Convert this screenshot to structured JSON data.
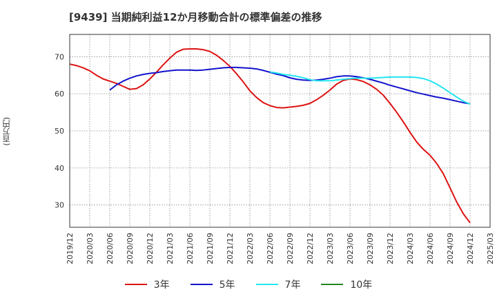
{
  "title": "[9439]  当期純利益12か月移動合計の標準偏差の推移",
  "y_unit_label": "(百万円)",
  "chart_data": {
    "type": "line",
    "title": "[9439]  当期純利益12か月移動合計の標準偏差の推移",
    "ylabel": "(百万円)",
    "xlabel": "",
    "ylim": [
      24,
      76
    ],
    "yticks": [
      30,
      40,
      50,
      60,
      70
    ],
    "xticks": [
      "2019/12",
      "2020/03",
      "2020/06",
      "2020/09",
      "2020/12",
      "2021/03",
      "2021/06",
      "2021/09",
      "2021/12",
      "2022/03",
      "2022/06",
      "2022/09",
      "2022/12",
      "2023/03",
      "2023/06",
      "2023/09",
      "2023/12",
      "2024/03",
      "2024/06",
      "2024/09",
      "2024/12",
      "2025/03"
    ],
    "grid": true,
    "legend_position": "bottom",
    "series": [
      {
        "name": "3年",
        "color": "#dd1111",
        "x": [
          "2019/12",
          "2020/01",
          "2020/02",
          "2020/03",
          "2020/04",
          "2020/05",
          "2020/06",
          "2020/07",
          "2020/08",
          "2020/09",
          "2020/10",
          "2020/11",
          "2020/12",
          "2021/01",
          "2021/02",
          "2021/03",
          "2021/04",
          "2021/05",
          "2021/06",
          "2021/07",
          "2021/08",
          "2021/09",
          "2021/10",
          "2021/11",
          "2021/12",
          "2022/01",
          "2022/02",
          "2022/03",
          "2022/04",
          "2022/05",
          "2022/06",
          "2022/07",
          "2022/08",
          "2022/09",
          "2022/10",
          "2022/11",
          "2022/12",
          "2023/01",
          "2023/02",
          "2023/03",
          "2023/04",
          "2023/05",
          "2023/06",
          "2023/07",
          "2023/08",
          "2023/09",
          "2023/10",
          "2023/11",
          "2023/12",
          "2024/01",
          "2024/02",
          "2024/03",
          "2024/04",
          "2024/05",
          "2024/06",
          "2024/07",
          "2024/08",
          "2024/09",
          "2024/10",
          "2024/11",
          "2024/12"
        ],
        "values": [
          68.0,
          67.6,
          67.0,
          66.2,
          65.0,
          64.0,
          63.4,
          62.8,
          62.0,
          61.2,
          61.4,
          62.4,
          64.0,
          65.8,
          67.8,
          69.6,
          71.2,
          72.0,
          72.1,
          72.1,
          71.9,
          71.4,
          70.4,
          69.0,
          67.4,
          65.4,
          63.2,
          60.8,
          59.0,
          57.6,
          56.8,
          56.3,
          56.2,
          56.4,
          56.6,
          56.9,
          57.4,
          58.4,
          59.6,
          61.0,
          62.6,
          63.6,
          64.0,
          63.8,
          63.3,
          62.4,
          61.2,
          59.6,
          57.4,
          55.0,
          52.4,
          49.6,
          47.0,
          45.0,
          43.4,
          41.2,
          38.4,
          34.6,
          30.8,
          27.6,
          25.2
        ]
      },
      {
        "name": "5年",
        "color": "#1111cc",
        "x": [
          "2020/06",
          "2020/07",
          "2020/08",
          "2020/09",
          "2020/10",
          "2020/11",
          "2020/12",
          "2021/01",
          "2021/02",
          "2021/03",
          "2021/04",
          "2021/05",
          "2021/06",
          "2021/07",
          "2021/08",
          "2021/09",
          "2021/10",
          "2021/11",
          "2021/12",
          "2022/01",
          "2022/02",
          "2022/03",
          "2022/04",
          "2022/05",
          "2022/06",
          "2022/07",
          "2022/08",
          "2022/09",
          "2022/10",
          "2022/11",
          "2022/12",
          "2023/01",
          "2023/02",
          "2023/03",
          "2023/04",
          "2023/05",
          "2023/06",
          "2023/07",
          "2023/08",
          "2023/09",
          "2023/10",
          "2023/11",
          "2023/12",
          "2024/01",
          "2024/02",
          "2024/03",
          "2024/04",
          "2024/05",
          "2024/06",
          "2024/07",
          "2024/08",
          "2024/09",
          "2024/10",
          "2024/11",
          "2024/12"
        ],
        "values": [
          61.0,
          62.4,
          63.4,
          64.2,
          64.8,
          65.2,
          65.5,
          65.7,
          66.0,
          66.2,
          66.4,
          66.4,
          66.4,
          66.3,
          66.4,
          66.6,
          66.8,
          67.0,
          67.1,
          67.1,
          67.0,
          66.9,
          66.7,
          66.3,
          65.8,
          65.3,
          64.9,
          64.3,
          63.9,
          63.7,
          63.6,
          63.7,
          63.9,
          64.2,
          64.6,
          64.8,
          64.8,
          64.6,
          64.3,
          63.9,
          63.4,
          62.9,
          62.3,
          61.8,
          61.3,
          60.8,
          60.3,
          59.9,
          59.5,
          59.1,
          58.8,
          58.4,
          58.0,
          57.6,
          57.3
        ]
      },
      {
        "name": "7年",
        "color": "#22e5ee",
        "x": [
          "2022/06",
          "2022/07",
          "2022/08",
          "2022/09",
          "2022/10",
          "2022/11",
          "2022/12",
          "2023/01",
          "2023/02",
          "2023/03",
          "2023/04",
          "2023/05",
          "2023/06",
          "2023/07",
          "2023/08",
          "2023/09",
          "2023/10",
          "2023/11",
          "2023/12",
          "2024/01",
          "2024/02",
          "2024/03",
          "2024/04",
          "2024/05",
          "2024/06",
          "2024/07",
          "2024/08",
          "2024/09",
          "2024/10",
          "2024/11",
          "2024/12"
        ],
        "values": [
          65.9,
          65.6,
          65.2,
          65.0,
          64.7,
          64.3,
          63.8,
          63.5,
          63.5,
          63.5,
          63.7,
          63.9,
          64.1,
          64.2,
          64.2,
          64.2,
          64.3,
          64.4,
          64.5,
          64.5,
          64.5,
          64.5,
          64.4,
          64.1,
          63.5,
          62.6,
          61.5,
          60.3,
          59.1,
          58.0,
          57.2
        ]
      },
      {
        "name": "10年",
        "color": "#228822",
        "x": [],
        "values": []
      }
    ]
  }
}
